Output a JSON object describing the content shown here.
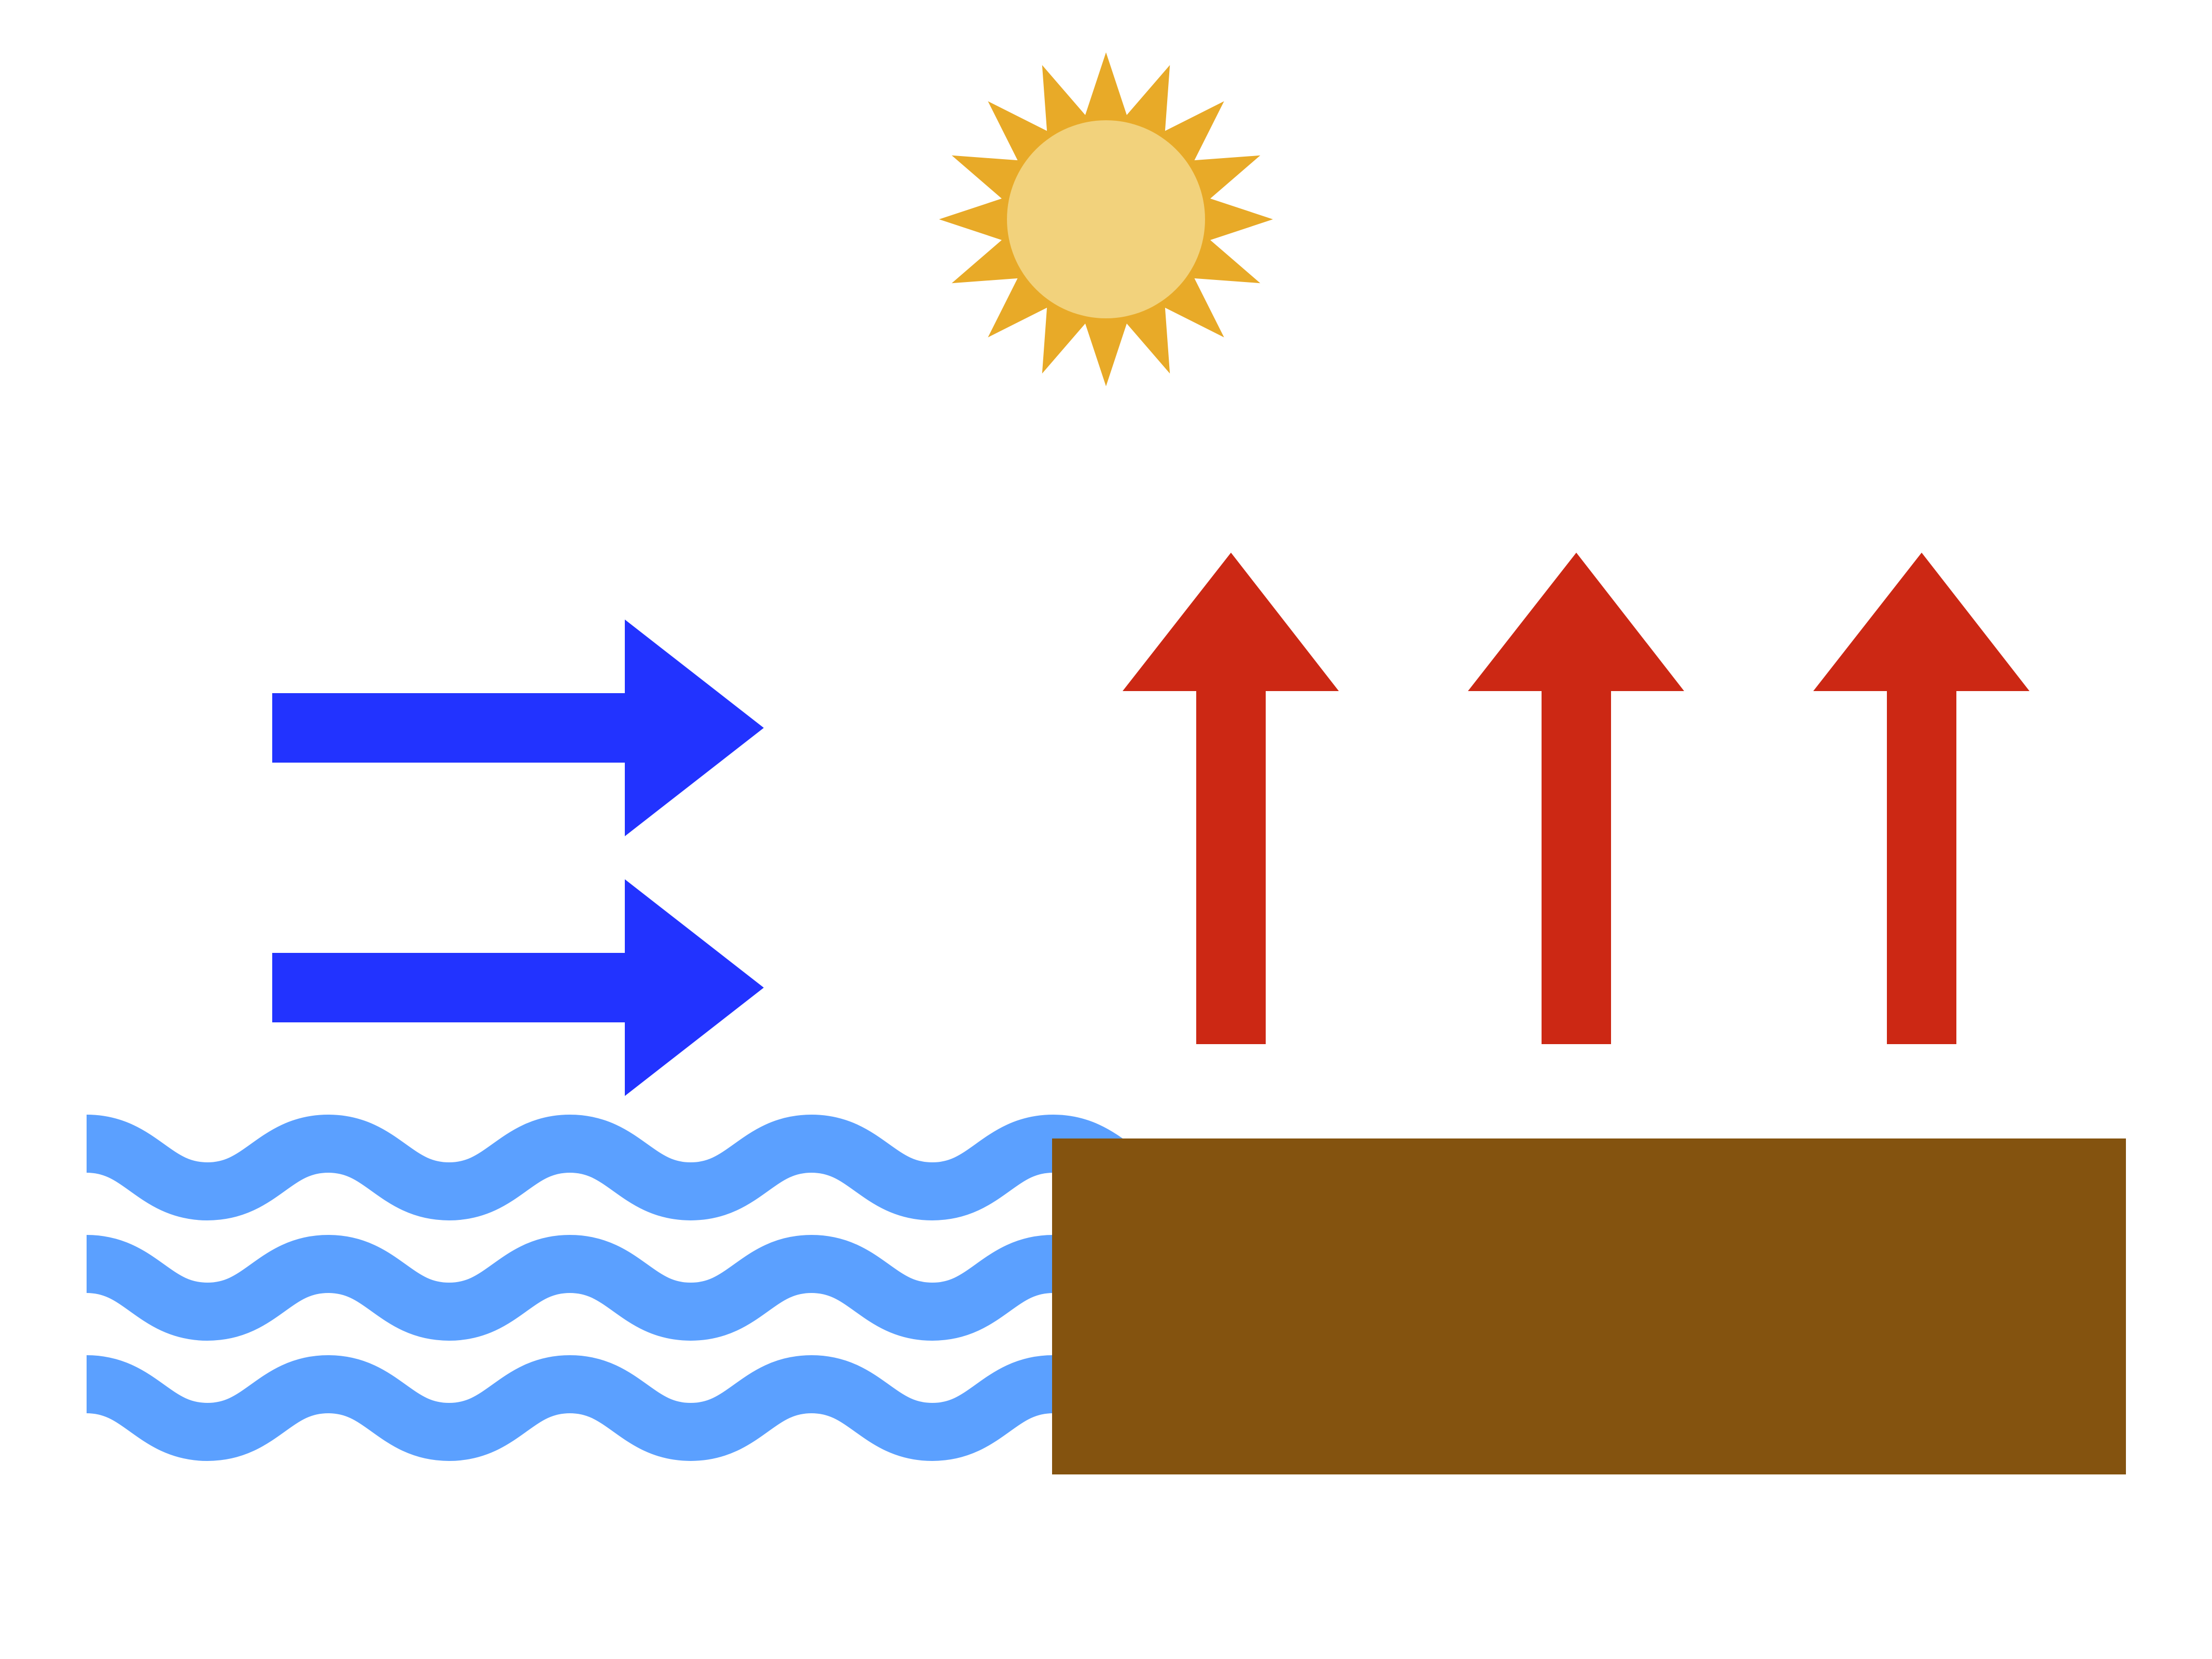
{
  "diagram": {
    "description_type": "sea-breeze-illustration",
    "colors": {
      "background": "#ffffff",
      "sun_rays": "#E8AA28",
      "sun_disc": "#F2D27C",
      "cool_air_arrow": "#2233FF",
      "warm_air_arrow": "#CC2814",
      "water": "#5BA0FF",
      "land": "#84530F"
    },
    "elements": {
      "sun": {
        "icon": "sun-icon",
        "ray_count": 16
      },
      "cool_air_arrows": {
        "icon": "right-arrow-icon",
        "count": 2,
        "direction": "right"
      },
      "warm_air_arrows": {
        "icon": "up-arrow-icon",
        "count": 3,
        "direction": "up"
      },
      "water_waves": {
        "icon": "wave-icon",
        "count": 3
      },
      "land_block": {
        "icon": "land-block"
      }
    }
  }
}
